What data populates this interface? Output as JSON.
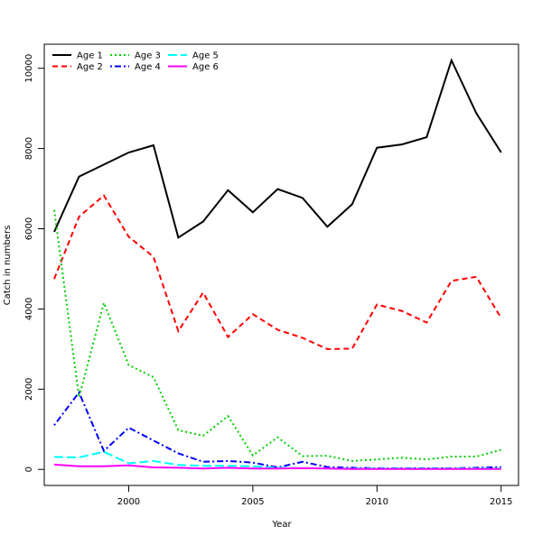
{
  "chart_data": {
    "type": "line",
    "title": "",
    "xlabel": "Year",
    "ylabel": "Catch in numbers",
    "xlim": [
      1996.6,
      2015.7
    ],
    "ylim": [
      -400,
      10600
    ],
    "x_ticks": [
      2000,
      2005,
      2010,
      2015
    ],
    "y_ticks": [
      0,
      2000,
      4000,
      6000,
      8000,
      10000
    ],
    "grid": false,
    "legend_position": "top-left",
    "x": [
      1997,
      1998,
      1999,
      2000,
      2001,
      2002,
      2003,
      2004,
      2005,
      2006,
      2007,
      2008,
      2009,
      2010,
      2011,
      2012,
      2013,
      2014,
      2015
    ],
    "series": [
      {
        "name": "Age 1",
        "color": "#000000",
        "dash": "solid",
        "values": [
          5920,
          7300,
          7600,
          7900,
          8080,
          5780,
          6180,
          6960,
          6410,
          6990,
          6770,
          6050,
          6610,
          8020,
          8100,
          8280,
          10200,
          8880,
          7900
        ]
      },
      {
        "name": "Age 2",
        "color": "#ff0000",
        "dash": "dashed",
        "values": [
          4750,
          6300,
          6830,
          5800,
          5300,
          3450,
          4410,
          3300,
          3870,
          3480,
          3280,
          3000,
          3010,
          4110,
          3950,
          3660,
          4700,
          4800,
          3770
        ]
      },
      {
        "name": "Age 3",
        "color": "#00cd00",
        "dash": "dotted",
        "values": [
          6470,
          1800,
          4150,
          2600,
          2300,
          980,
          840,
          1330,
          350,
          800,
          330,
          340,
          210,
          250,
          290,
          250,
          320,
          320,
          490
        ]
      },
      {
        "name": "Age 4",
        "color": "#0000ff",
        "dash": "dotdash",
        "values": [
          1100,
          1920,
          460,
          1040,
          720,
          400,
          190,
          210,
          170,
          50,
          190,
          60,
          40,
          30,
          30,
          30,
          30,
          40,
          60
        ]
      },
      {
        "name": "Age 5",
        "color": "#00ffff",
        "dash": "longdash",
        "values": [
          310,
          300,
          440,
          150,
          210,
          110,
          90,
          90,
          80,
          40,
          30,
          20,
          20,
          20,
          20,
          20,
          20,
          20,
          20
        ]
      },
      {
        "name": "Age 6",
        "color": "#ff00ff",
        "dash": "solid",
        "values": [
          120,
          80,
          80,
          100,
          50,
          40,
          20,
          40,
          20,
          20,
          30,
          20,
          10,
          10,
          10,
          10,
          10,
          10,
          10
        ]
      }
    ]
  }
}
